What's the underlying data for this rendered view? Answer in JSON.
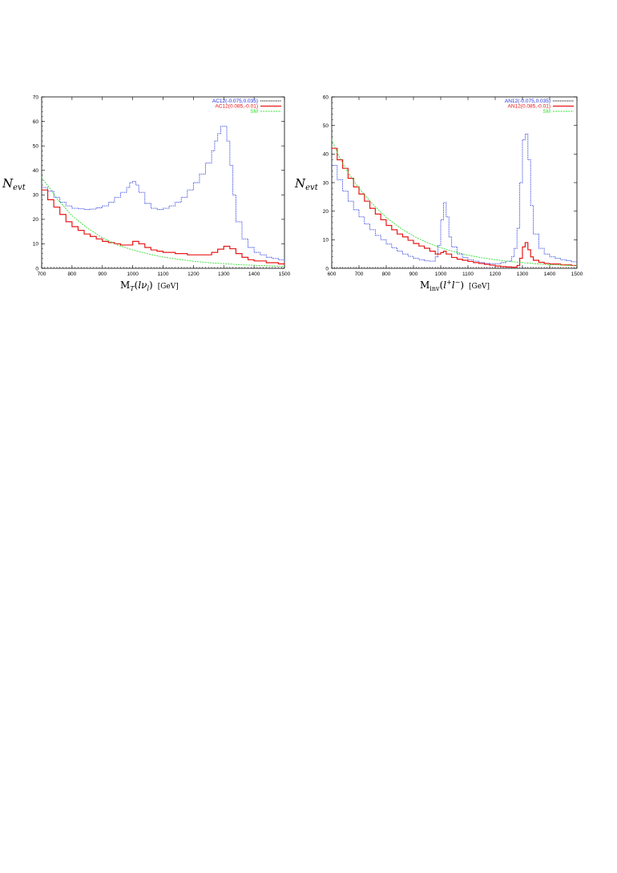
{
  "colors": {
    "blue": "#2233dd",
    "red": "#e81818",
    "green": "#33dd33"
  },
  "chart_data": [
    {
      "type": "line",
      "title": "",
      "ylabel": "N_evt",
      "xlabel": "M_T(lν_l) [GeV]",
      "xlim": [
        700,
        1500
      ],
      "ylim": [
        0,
        70
      ],
      "xticks": [
        "700",
        "800",
        "900",
        "1000",
        "1100",
        "1200",
        "1300",
        "1400",
        "1500"
      ],
      "yticks": [
        "0",
        "10",
        "20",
        "30",
        "40",
        "50",
        "60",
        "70"
      ],
      "grid": false,
      "legend": "top-right",
      "series": [
        {
          "name": "AC12(-0.075,0.035)",
          "color": "blue",
          "style": "dotted-step",
          "x": [
            700,
            720,
            740,
            760,
            780,
            800,
            820,
            840,
            860,
            880,
            900,
            920,
            940,
            960,
            980,
            990,
            1000,
            1010,
            1020,
            1040,
            1060,
            1080,
            1100,
            1120,
            1140,
            1160,
            1180,
            1200,
            1220,
            1240,
            1260,
            1270,
            1280,
            1290,
            1300,
            1310,
            1320,
            1330,
            1340,
            1360,
            1380,
            1400,
            1420,
            1440,
            1460,
            1480,
            1500
          ],
          "y": [
            33,
            31.5,
            29,
            27,
            25.5,
            24.5,
            24.3,
            24,
            24.2,
            24.7,
            25.5,
            27,
            29,
            31,
            33,
            35,
            35.5,
            34,
            31,
            26.5,
            24.5,
            24,
            24.5,
            25.5,
            27,
            29,
            32,
            35,
            38.5,
            43,
            48,
            52,
            55,
            58,
            58,
            52,
            42,
            30,
            19,
            12,
            8.5,
            6.5,
            5.5,
            4.5,
            4,
            3.5,
            3
          ]
        },
        {
          "name": "AC12(0.085,-0.01)",
          "color": "red",
          "style": "solid-step",
          "x": [
            700,
            720,
            740,
            760,
            780,
            800,
            820,
            840,
            860,
            880,
            900,
            920,
            940,
            960,
            980,
            1000,
            1020,
            1040,
            1060,
            1080,
            1100,
            1140,
            1180,
            1220,
            1260,
            1280,
            1300,
            1320,
            1340,
            1360,
            1380,
            1400,
            1440,
            1480,
            1500
          ],
          "y": [
            32,
            28,
            25,
            22,
            19,
            17,
            15.5,
            14,
            13,
            12,
            11,
            10.5,
            10,
            9.5,
            9.5,
            11,
            10,
            8.5,
            7.5,
            7,
            6.5,
            6,
            5.5,
            5.5,
            6.5,
            7.8,
            9,
            8,
            6,
            4.5,
            3.5,
            3,
            2.3,
            1.8,
            1.5
          ]
        },
        {
          "name": "SM",
          "color": "green",
          "style": "dashed-smooth",
          "x": [
            700,
            725,
            750,
            800,
            850,
            900,
            950,
            1000,
            1050,
            1100,
            1150,
            1200,
            1250,
            1300,
            1350,
            1400,
            1450,
            1500
          ],
          "y": [
            37,
            33,
            28.5,
            21.5,
            16.5,
            12.5,
            9.5,
            7.5,
            5.9,
            4.6,
            3.7,
            2.9,
            2.3,
            1.9,
            1.5,
            1.2,
            1,
            0.8
          ]
        }
      ]
    },
    {
      "type": "line",
      "title": "",
      "ylabel": "N_evt",
      "xlabel": "M_inv(l+l−) [GeV]",
      "xlim": [
        600,
        1500
      ],
      "ylim": [
        0,
        60
      ],
      "xticks": [
        "600",
        "700",
        "800",
        "900",
        "1000",
        "1100",
        "1200",
        "1300",
        "1400",
        "1500"
      ],
      "yticks": [
        "0",
        "10",
        "20",
        "30",
        "40",
        "50",
        "60"
      ],
      "grid": false,
      "legend": "top-right",
      "series": [
        {
          "name": "AN12(-0.075,0.035)",
          "color": "blue",
          "style": "dotted-step",
          "x": [
            600,
            620,
            640,
            660,
            680,
            700,
            720,
            740,
            760,
            780,
            800,
            820,
            840,
            860,
            880,
            900,
            920,
            940,
            960,
            980,
            990,
            1000,
            1010,
            1020,
            1030,
            1040,
            1060,
            1080,
            1100,
            1120,
            1140,
            1160,
            1180,
            1200,
            1220,
            1240,
            1260,
            1270,
            1280,
            1290,
            1300,
            1310,
            1320,
            1330,
            1340,
            1360,
            1380,
            1400,
            1420,
            1440,
            1460,
            1480,
            1500
          ],
          "y": [
            36,
            31,
            27,
            23.5,
            20.5,
            18,
            15.5,
            13.5,
            11.5,
            10,
            8.5,
            7.2,
            6,
            5,
            4.2,
            3.5,
            3,
            2.6,
            2.5,
            4,
            8,
            17,
            23,
            18,
            11,
            7.5,
            5,
            3.8,
            3,
            2.5,
            2,
            1.7,
            1.6,
            1.6,
            2,
            2.5,
            4,
            7,
            14,
            30,
            45,
            47,
            38,
            22,
            12,
            7,
            5,
            4,
            3.5,
            3,
            2.7,
            2.3,
            2
          ]
        },
        {
          "name": "AN12(0.085,-0.01)",
          "color": "red",
          "style": "solid-step",
          "x": [
            600,
            620,
            640,
            660,
            680,
            700,
            720,
            740,
            760,
            780,
            800,
            820,
            840,
            860,
            880,
            900,
            920,
            940,
            960,
            980,
            1000,
            1010,
            1020,
            1040,
            1060,
            1080,
            1100,
            1120,
            1140,
            1160,
            1180,
            1200,
            1220,
            1240,
            1260,
            1280,
            1290,
            1300,
            1310,
            1320,
            1330,
            1340,
            1360,
            1380,
            1400,
            1440,
            1480,
            1500
          ],
          "y": [
            42,
            38,
            35,
            31.5,
            28.5,
            26,
            23.5,
            21,
            19,
            17,
            15,
            13.5,
            12,
            11,
            9.8,
            8.7,
            7.8,
            7,
            6,
            5,
            5.5,
            6,
            5,
            3.8,
            3.2,
            2.8,
            2.4,
            2,
            1.7,
            1.4,
            1.1,
            0.8,
            0.6,
            0.5,
            0.4,
            1,
            3.5,
            7.5,
            9,
            6.5,
            4,
            2.8,
            2.1,
            1.7,
            1.5,
            1.2,
            1,
            0.9
          ]
        },
        {
          "name": "SM",
          "color": "green",
          "style": "dashed-smooth",
          "x": [
            600,
            625,
            650,
            700,
            750,
            800,
            850,
            900,
            950,
            1000,
            1050,
            1100,
            1150,
            1200,
            1250,
            1300,
            1350,
            1400,
            1450,
            1500
          ],
          "y": [
            45,
            39.5,
            35,
            28,
            22.5,
            17.8,
            14.2,
            11.3,
            9,
            7.2,
            5.8,
            4.6,
            3.7,
            3,
            2.4,
            2,
            1.6,
            1.3,
            1.1,
            0.9
          ]
        }
      ]
    }
  ]
}
